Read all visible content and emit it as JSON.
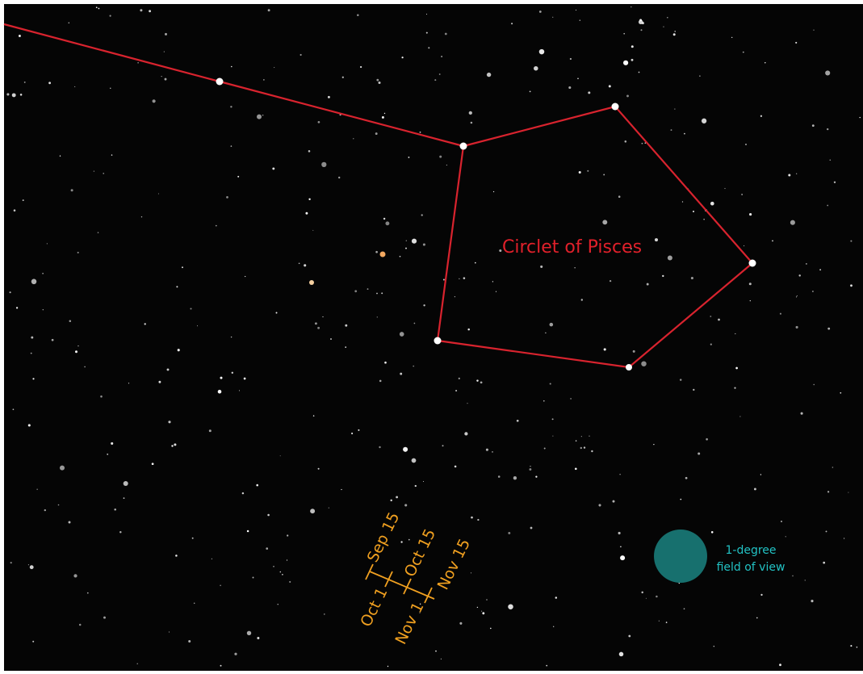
{
  "labels": {
    "constellation": "Circlet of Pisces",
    "dates": [
      "Sep 15",
      "Oct 15",
      "Nov 15",
      "Oct 1",
      "Nov 1"
    ],
    "field_of_view": [
      "1-degree",
      "field of view"
    ]
  }
}
